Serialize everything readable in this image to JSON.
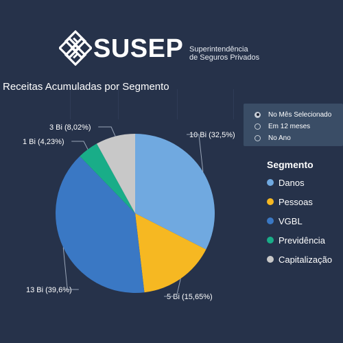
{
  "header": {
    "brand": "SUSEP",
    "tagline_line1": "Superintendência",
    "tagline_line2": "de Seguros Privados"
  },
  "filter": {
    "options": [
      "No Mês Selecionado",
      "Em 12 meses",
      "No Ano"
    ],
    "selected_index": 0
  },
  "legend": {
    "title": "Segmento"
  },
  "colors": {
    "background": "#26324a",
    "Danos": "#70a9e0",
    "Pessoas": "#f6b822",
    "VGBL": "#3a78c4",
    "Previdência": "#19ad88",
    "Capitalização": "#c8c8c8"
  },
  "chart_data": {
    "type": "pie",
    "title": "Receitas Acumuladas por Segmento",
    "categories": [
      "Danos",
      "Pessoas",
      "VGBL",
      "Previdência",
      "Capitalização"
    ],
    "values": [
      32.5,
      15.65,
      39.6,
      4.23,
      8.02
    ],
    "data_labels": [
      "10 Bi (32,5%)",
      "5 Bi (15,65%)",
      "13 Bi (39,6%)",
      "1 Bi (4,23%)",
      "3 Bi (8,02%)"
    ],
    "start_angle_deg": 0,
    "direction": "clockwise",
    "legend_position": "right"
  }
}
